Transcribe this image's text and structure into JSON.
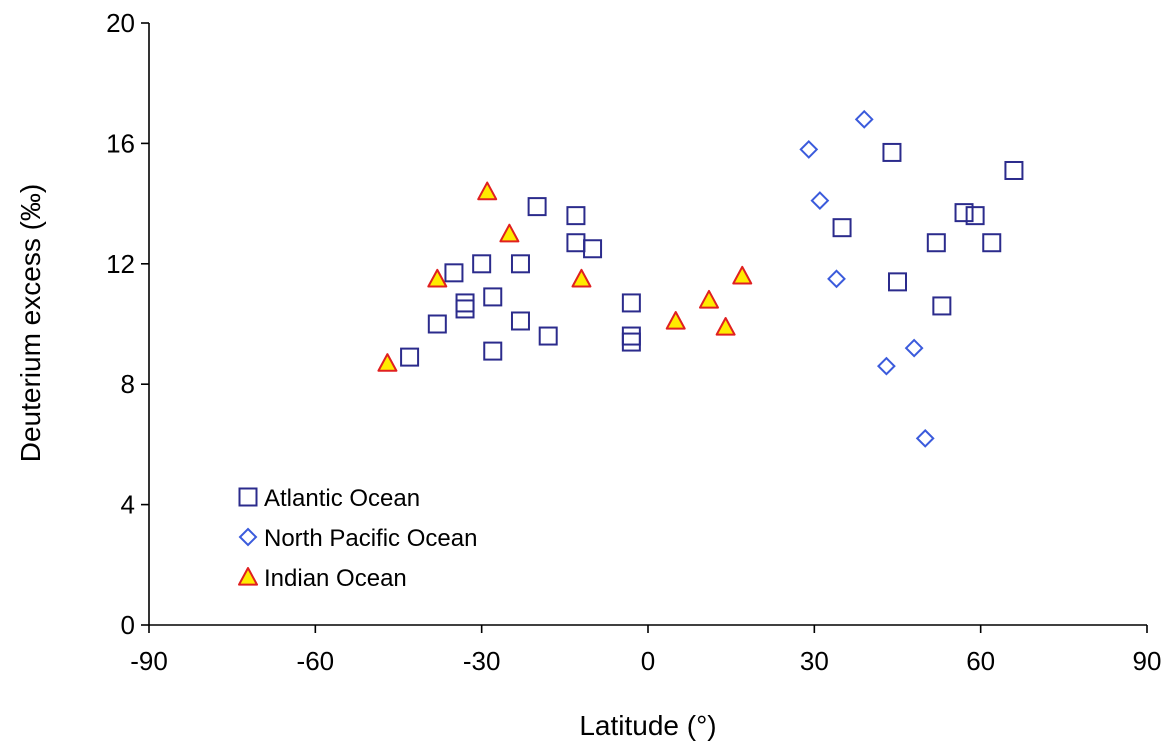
{
  "chart_data": {
    "type": "scatter",
    "title": "",
    "xlabel": "Latitude (°)",
    "ylabel": "Deuterium excess (‰)",
    "xlim": [
      -90,
      90
    ],
    "ylim": [
      0,
      20
    ],
    "xticks": [
      "-90",
      "-60",
      "-30",
      "0",
      "30",
      "60",
      "90"
    ],
    "yticks": [
      "0",
      "4",
      "8",
      "12",
      "16",
      "20"
    ],
    "grid": false,
    "legend_position": "bottom-left",
    "series": [
      {
        "name": "Atlantic Ocean",
        "marker": "square",
        "color": "#2b2b8c",
        "fill": "none",
        "points": [
          [
            -43,
            8.9
          ],
          [
            -38,
            10.0
          ],
          [
            -35,
            11.7
          ],
          [
            -33,
            10.5
          ],
          [
            -33,
            10.7
          ],
          [
            -30,
            12.0
          ],
          [
            -28,
            10.9
          ],
          [
            -28,
            9.1
          ],
          [
            -23,
            10.1
          ],
          [
            -23,
            12.0
          ],
          [
            -20,
            13.9
          ],
          [
            -18,
            9.6
          ],
          [
            -13,
            13.6
          ],
          [
            -13,
            12.7
          ],
          [
            -10,
            12.5
          ],
          [
            -3,
            10.7
          ],
          [
            -3,
            9.6
          ],
          [
            -3,
            9.4
          ],
          [
            35,
            13.2
          ],
          [
            44,
            15.7
          ],
          [
            45,
            11.4
          ],
          [
            52,
            12.7
          ],
          [
            53,
            10.6
          ],
          [
            57,
            13.7
          ],
          [
            59,
            13.6
          ],
          [
            62,
            12.7
          ],
          [
            66,
            15.1
          ]
        ]
      },
      {
        "name": "North Pacific Ocean",
        "marker": "diamond",
        "color": "#3b5bdc",
        "fill": "#ffffff",
        "points": [
          [
            29,
            15.8
          ],
          [
            31,
            14.1
          ],
          [
            34,
            11.5
          ],
          [
            39,
            16.8
          ],
          [
            43,
            8.6
          ],
          [
            48,
            9.2
          ],
          [
            50,
            6.2
          ]
        ]
      },
      {
        "name": "Indian Ocean",
        "marker": "triangle",
        "color": "#e02020",
        "fill": "#ffeb00",
        "points": [
          [
            -47,
            8.7
          ],
          [
            -38,
            11.5
          ],
          [
            -29,
            14.4
          ],
          [
            -25,
            13.0
          ],
          [
            -12,
            11.5
          ],
          [
            5,
            10.1
          ],
          [
            11,
            10.8
          ],
          [
            14,
            9.9
          ],
          [
            17,
            11.6
          ]
        ]
      }
    ]
  }
}
